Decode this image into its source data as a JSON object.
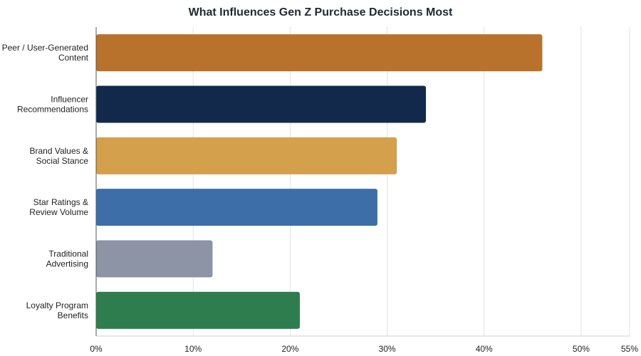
{
  "chart_data": {
    "type": "bar",
    "orientation": "horizontal",
    "title": "What Influences Gen Z Purchase Decisions Most",
    "xlabel": "",
    "ylabel": "",
    "categories": [
      [
        "Peer / User-Generated",
        "Content"
      ],
      [
        "Influencer",
        "Recommendations"
      ],
      [
        "Brand Values &",
        "Social Stance"
      ],
      [
        "Star Ratings &",
        "Review Volume"
      ],
      [
        "Traditional",
        "Advertising"
      ],
      [
        "Loyalty Program",
        "Benefits"
      ]
    ],
    "values": [
      46,
      34,
      31,
      29,
      12,
      21
    ],
    "colors": [
      "#b8722c",
      "#13294b",
      "#d4a04c",
      "#3d6ea8",
      "#8c94a6",
      "#2e7d4f"
    ],
    "xlim": [
      0,
      55
    ],
    "xticks": [
      0,
      10,
      20,
      30,
      40,
      50,
      55
    ],
    "xtick_labels": [
      "0%",
      "10%",
      "20%",
      "30%",
      "40%",
      "50%",
      "55%"
    ],
    "grid": "vertical",
    "legend": "none"
  }
}
